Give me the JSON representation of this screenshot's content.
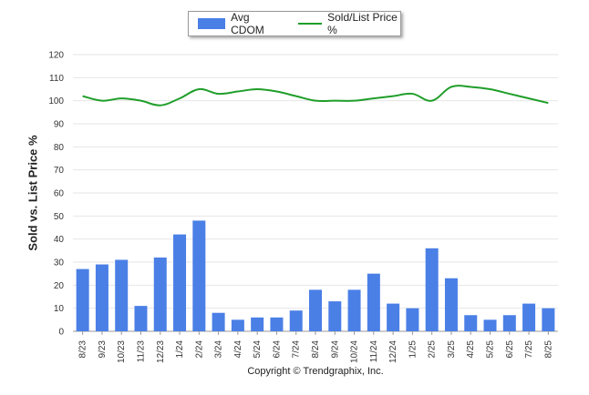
{
  "chart_data": {
    "type": "bar",
    "categories": [
      "8/23",
      "9/23",
      "10/23",
      "11/23",
      "12/23",
      "1/24",
      "2/24",
      "3/24",
      "4/24",
      "5/24",
      "6/24",
      "7/24",
      "8/24",
      "9/24",
      "10/24",
      "11/24",
      "12/24",
      "1/25",
      "2/25",
      "3/25",
      "4/25",
      "5/25",
      "6/25",
      "7/25",
      "8/25"
    ],
    "series": [
      {
        "name": "Avg CDOM",
        "type": "bar",
        "color": "#4a7fe6",
        "values": [
          27,
          29,
          31,
          11,
          32,
          42,
          48,
          8,
          5,
          6,
          6,
          9,
          18,
          13,
          18,
          25,
          12,
          10,
          36,
          23,
          7,
          5,
          7,
          12,
          10
        ]
      },
      {
        "name": "Sold/List Price %",
        "type": "line",
        "color": "#1f9e2a",
        "values": [
          102,
          100,
          101,
          100,
          98,
          101,
          105,
          103,
          104,
          105,
          104,
          102,
          100,
          100,
          100,
          101,
          102,
          103,
          100,
          106,
          106,
          105,
          103,
          101,
          99
        ]
      }
    ],
    "ylabel": "Sold vs. List Price %",
    "ylim": [
      0,
      120
    ],
    "yticks": [
      0,
      10,
      20,
      30,
      40,
      50,
      60,
      70,
      80,
      90,
      100,
      110,
      120
    ],
    "grid": true,
    "legend": "top-center"
  },
  "legend": {
    "bar_label": "Avg CDOM",
    "line_label": "Sold/List Price %"
  },
  "axis": {
    "ylabel": "Sold vs. List Price %"
  },
  "footer": {
    "copyright": "Copyright © Trendgraphix, Inc."
  },
  "colors": {
    "bar": "#4a7fe6",
    "line": "#1f9e2a",
    "grid": "#e6e6e6",
    "axis": "#9a9a9a"
  }
}
